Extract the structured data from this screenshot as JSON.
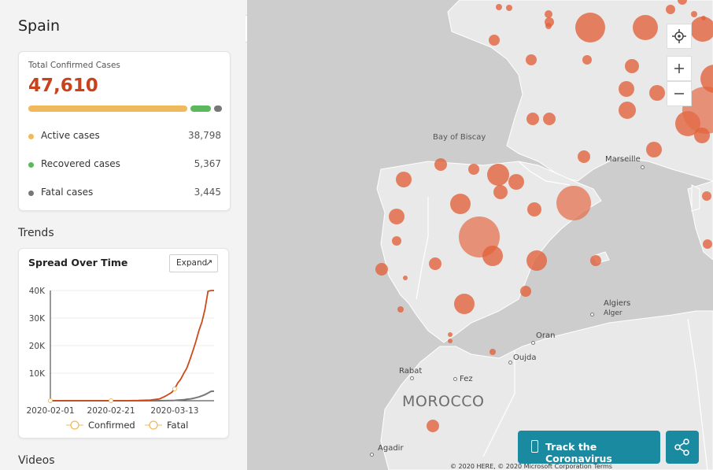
{
  "sidebar": {
    "country": "Spain",
    "summary": {
      "label": "Total Confirmed Cases",
      "total": "47,610",
      "active_fraction": 0.815,
      "recovered_fraction": 0.113,
      "fatal_fraction": 0.072,
      "colors": {
        "active": "#f0b95c",
        "recovered": "#5cb85c",
        "fatal": "#777777",
        "total": "#c8431b"
      },
      "rows": [
        {
          "label": "Active cases",
          "value": "38,798"
        },
        {
          "label": "Recovered cases",
          "value": "5,367"
        },
        {
          "label": "Fatal cases",
          "value": "3,445"
        }
      ]
    },
    "trends_title": "Trends",
    "trend_card": {
      "title": "Spread Over Time",
      "expand_label": "Expand",
      "expand_icon": "expand-arrow-icon"
    },
    "videos_title": "Videos",
    "collapse_icon": "chevron-left-icon"
  },
  "chart_data": {
    "type": "line",
    "title": "Spread Over Time",
    "x": [
      "2020-02-01",
      "2020-02-05",
      "2020-02-09",
      "2020-02-13",
      "2020-02-17",
      "2020-02-21",
      "2020-02-25",
      "2020-03-01",
      "2020-03-05",
      "2020-03-08",
      "2020-03-10",
      "2020-03-12",
      "2020-03-13",
      "2020-03-14",
      "2020-03-15",
      "2020-03-16",
      "2020-03-17",
      "2020-03-18",
      "2020-03-19",
      "2020-03-20",
      "2020-03-21",
      "2020-03-22",
      "2020-03-23",
      "2020-03-24",
      "2020-03-25",
      "2020-03-26"
    ],
    "xticks": [
      "2020-02-01",
      "2020-02-21",
      "2020-03-13"
    ],
    "yticks": [
      "10K",
      "20K",
      "30K",
      "40K"
    ],
    "ylim": [
      0,
      40000
    ],
    "series": [
      {
        "name": "Confirmed",
        "color": "#cc4a1c",
        "values": [
          1,
          1,
          2,
          2,
          2,
          2,
          2,
          80,
          260,
          670,
          1700,
          3000,
          4300,
          6400,
          7800,
          9900,
          11800,
          14800,
          18000,
          21500,
          25400,
          28600,
          33100,
          39700,
          40000,
          40000
        ]
      },
      {
        "name": "Fatal",
        "color": "#777777",
        "values": [
          0,
          0,
          0,
          0,
          0,
          0,
          0,
          0,
          3,
          10,
          35,
          85,
          120,
          190,
          290,
          340,
          530,
          640,
          830,
          1090,
          1380,
          1770,
          2190,
          2800,
          3400,
          3445
        ]
      }
    ],
    "legend": [
      "Confirmed",
      "Fatal"
    ],
    "legend_marker_color": "#f0b95c",
    "grid": true
  },
  "map": {
    "labels": [
      {
        "text": "Bay of Biscay"
      },
      {
        "text": "Marseille"
      },
      {
        "text": "Algiers"
      },
      {
        "text": "Alger"
      },
      {
        "text": "Oran"
      },
      {
        "text": "Oujda"
      },
      {
        "text": "Rabat"
      },
      {
        "text": "Fez"
      },
      {
        "text": "MOROCCO"
      },
      {
        "text": "Agadir"
      }
    ],
    "controls": {
      "locate_icon": "locate-icon",
      "zoom_in_icon": "zoom-in-icon",
      "zoom_out_icon": "zoom-out-icon"
    },
    "copyright": "© 2020 HERE, © 2020 Microsoft Corporation  Terms"
  },
  "actions": {
    "track_label": "Track the Coronavirus",
    "track_icon": "phone-icon",
    "share_icon": "share-icon"
  }
}
